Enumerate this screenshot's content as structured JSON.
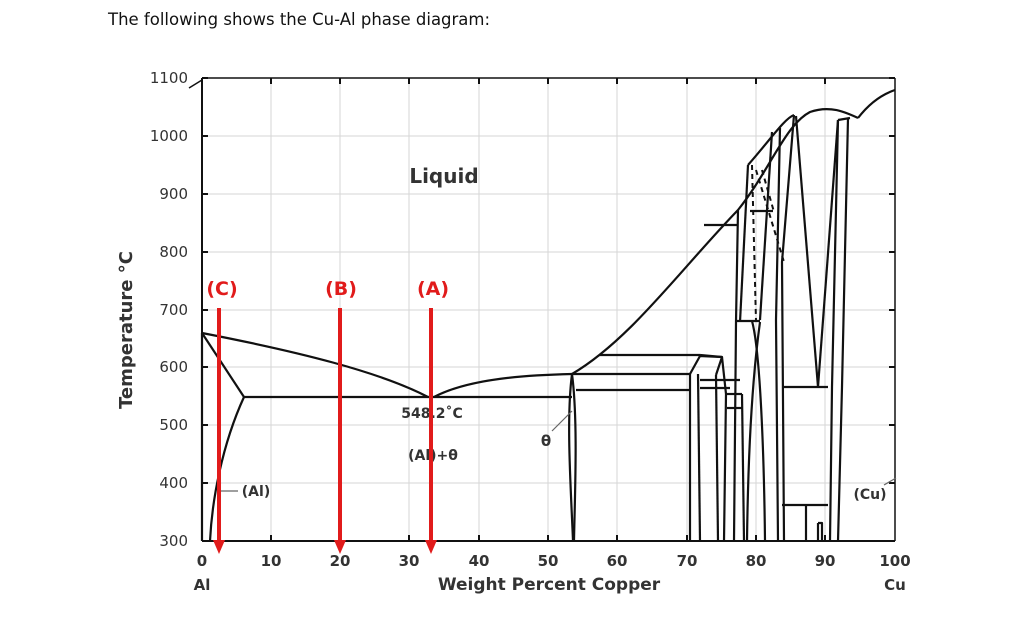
{
  "intro_text": "The following shows the Cu-Al phase diagram:",
  "axes": {
    "y_label": "Temperature °C",
    "x_label": "Weight Percent Copper",
    "x_end_left": "Al",
    "x_end_right": "Cu",
    "y_ticks": [
      "300",
      "400",
      "500",
      "600",
      "700",
      "800",
      "900",
      "1000",
      "1100"
    ],
    "x_ticks": [
      "0",
      "10",
      "20",
      "30",
      "40",
      "50",
      "60",
      "70",
      "80",
      "90",
      "100"
    ]
  },
  "labels": {
    "liquid": "Liquid",
    "eutectic_temp": "548.2˚C",
    "al_theta": "(Al)+θ",
    "theta": "θ",
    "al": "(Al)",
    "cu": "(Cu)"
  },
  "markers": [
    {
      "label": "(C)",
      "wt_cu": 2.5
    },
    {
      "label": "(B)",
      "wt_cu": 20
    },
    {
      "label": "(A)",
      "wt_cu": 33
    }
  ],
  "colors": {
    "marker": "#e11b1b",
    "line": "#111111",
    "grid": "#d6d6d6"
  }
}
